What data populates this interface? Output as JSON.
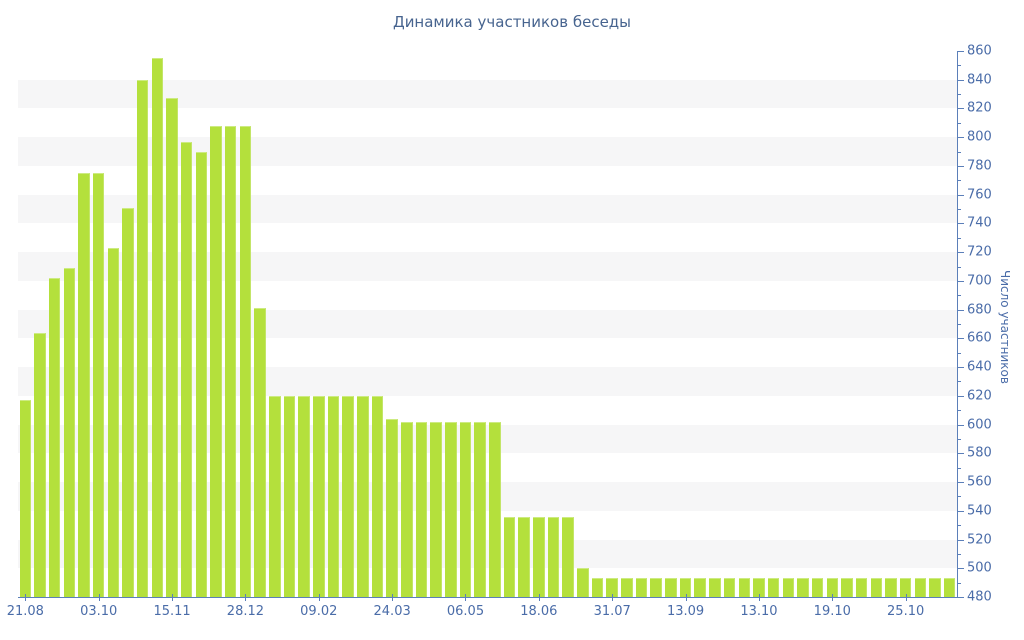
{
  "title": "Динамика участников беседы",
  "y_axis": {
    "label": "Число участников",
    "min": 480,
    "max": 860,
    "step": 20,
    "minor_step": 10
  },
  "colors": {
    "bar": "#b4e03c",
    "bar_edge": "#cdeb82",
    "band_gray": "#f6f6f7",
    "axis": "#5b7fb9",
    "title_text": "#47648f",
    "tick_text": "#4a6ca8"
  },
  "chart_data": {
    "type": "bar",
    "title": "Динамика участников беседы",
    "xlabel": "",
    "ylabel": "Число участников",
    "ylim": [
      480,
      860
    ],
    "grid": "alternating horizontal bands every 20 units, gray starting at 840-820",
    "legend": "none",
    "x_tick_labels": [
      "21.08",
      "03.10",
      "15.11",
      "28.12",
      "09.02",
      "24.03",
      "06.05",
      "18.06",
      "31.07",
      "13.09",
      "13.10",
      "19.10",
      "25.10"
    ],
    "x_tick_every_n_bars": 5,
    "values": [
      617,
      664,
      702,
      709,
      775,
      775,
      723,
      751,
      840,
      855,
      827,
      797,
      790,
      808,
      808,
      808,
      681,
      620,
      620,
      620,
      620,
      620,
      620,
      620,
      620,
      604,
      602,
      602,
      602,
      602,
      602,
      602,
      602,
      536,
      536,
      536,
      536,
      536,
      500,
      493,
      493,
      493,
      493,
      493,
      493,
      493,
      493,
      493,
      493,
      493,
      493,
      493,
      493,
      493,
      493,
      493,
      493,
      493,
      493,
      493,
      493,
      493,
      493,
      493
    ]
  }
}
